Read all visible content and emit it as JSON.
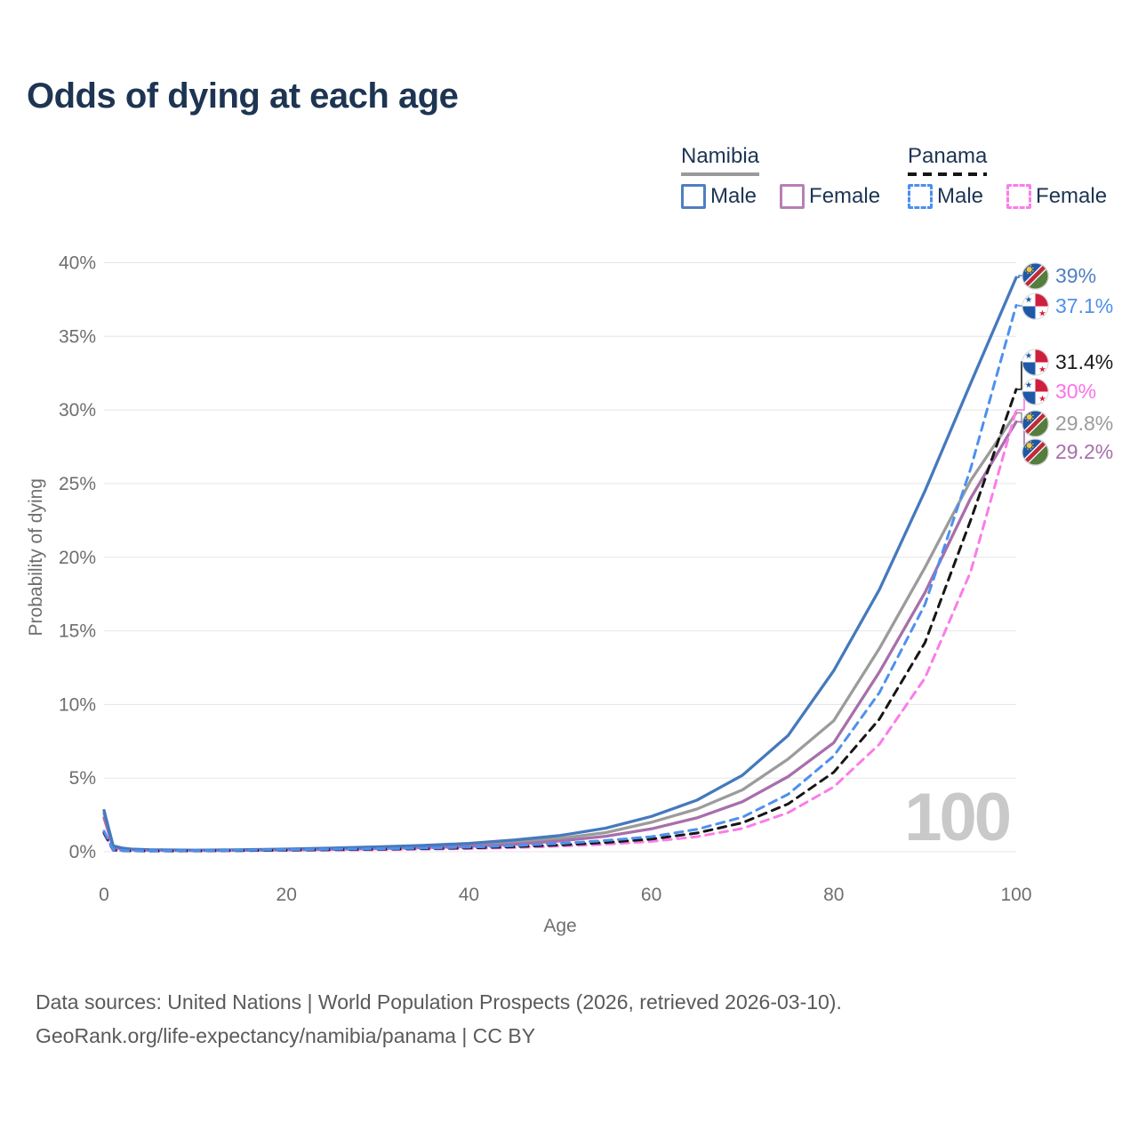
{
  "title": "Odds of dying at each age",
  "legend": {
    "groups": [
      {
        "id": "namibia",
        "label": "Namibia",
        "line_style": "solid",
        "line_color": "#9a9a9a",
        "items": [
          {
            "label": "Male",
            "color": "#4f7fc1",
            "dashed": false
          },
          {
            "label": "Female",
            "color": "#b77fb5",
            "dashed": false
          }
        ]
      },
      {
        "id": "panama",
        "label": "Panama",
        "line_style": "dashed",
        "line_color": "#151515",
        "items": [
          {
            "label": "Male",
            "color": "#4d8ef0",
            "dashed": true
          },
          {
            "label": "Female",
            "color": "#fc7de9",
            "dashed": true
          }
        ]
      }
    ]
  },
  "chart_data": {
    "type": "line",
    "title": "Odds of dying at each age",
    "xlabel": "Age",
    "ylabel": "Probability of dying",
    "xlim": [
      0,
      100
    ],
    "ylim": [
      0,
      40
    ],
    "grid": "horizontal",
    "legend_position": "top-right",
    "age_indicator": "100",
    "x_ticks": [
      0,
      20,
      40,
      60,
      80,
      100
    ],
    "y_ticks": [
      {
        "value": 0,
        "label": "0%"
      },
      {
        "value": 5,
        "label": "5%"
      },
      {
        "value": 10,
        "label": "10%"
      },
      {
        "value": 15,
        "label": "15%"
      },
      {
        "value": 20,
        "label": "20%"
      },
      {
        "value": 25,
        "label": "25%"
      },
      {
        "value": 30,
        "label": "30%"
      },
      {
        "value": 35,
        "label": "35%"
      },
      {
        "value": 40,
        "label": "40%"
      }
    ],
    "x": [
      0,
      1,
      2,
      3,
      5,
      10,
      15,
      20,
      25,
      30,
      35,
      40,
      45,
      50,
      55,
      60,
      65,
      70,
      75,
      80,
      85,
      90,
      95,
      100
    ],
    "series": [
      {
        "id": "namibia-male",
        "name": "Namibia Male",
        "country": "Namibia",
        "sex": "male",
        "color": "#4579bd",
        "dashed": false,
        "flag": "namibia",
        "end_value": 39.0,
        "end_label": "39%",
        "label_color": "#4f7fc1",
        "values": [
          2.8,
          0.4,
          0.25,
          0.18,
          0.13,
          0.1,
          0.13,
          0.18,
          0.25,
          0.33,
          0.43,
          0.57,
          0.8,
          1.1,
          1.6,
          2.4,
          3.5,
          5.2,
          7.9,
          12.3,
          17.8,
          24.5,
          31.8,
          39.0
        ]
      },
      {
        "id": "namibia-both",
        "name": "Namibia",
        "country": "Namibia",
        "sex": "both",
        "color": "#9b9b9b",
        "dashed": false,
        "flag": "namibia",
        "end_value": 29.8,
        "end_label": "29.8%",
        "label_color": "#9b9b9b",
        "values": [
          2.6,
          0.35,
          0.22,
          0.16,
          0.11,
          0.09,
          0.11,
          0.15,
          0.2,
          0.27,
          0.35,
          0.46,
          0.63,
          0.9,
          1.3,
          2.0,
          2.9,
          4.2,
          6.3,
          8.9,
          13.8,
          19.3,
          25.2,
          29.8
        ]
      },
      {
        "id": "namibia-female",
        "name": "Namibia Female",
        "country": "Namibia",
        "sex": "female",
        "color": "#a76fab",
        "dashed": false,
        "flag": "namibia",
        "end_value": 29.2,
        "end_label": "29.2%",
        "label_color": "#a76fab",
        "values": [
          2.3,
          0.3,
          0.19,
          0.14,
          0.1,
          0.08,
          0.09,
          0.12,
          0.16,
          0.21,
          0.28,
          0.37,
          0.51,
          0.73,
          1.05,
          1.55,
          2.3,
          3.4,
          5.1,
          7.4,
          12.2,
          17.6,
          24.0,
          29.2
        ]
      },
      {
        "id": "panama-male",
        "name": "Panama Male",
        "country": "Panama",
        "sex": "male",
        "color": "#4e90ee",
        "dashed": true,
        "flag": "panama",
        "end_value": 37.1,
        "end_label": "37.1%",
        "label_color": "#4e90ee",
        "values": [
          1.4,
          0.12,
          0.09,
          0.07,
          0.06,
          0.07,
          0.1,
          0.14,
          0.17,
          0.2,
          0.25,
          0.31,
          0.41,
          0.56,
          0.76,
          1.02,
          1.52,
          2.35,
          3.9,
          6.5,
          10.8,
          16.8,
          26.0,
          37.1
        ]
      },
      {
        "id": "panama-both",
        "name": "Panama",
        "country": "Panama",
        "sex": "both",
        "color": "#161616",
        "dashed": true,
        "flag": "panama",
        "end_value": 31.4,
        "end_label": "31.4%",
        "label_color": "#1a1a1a",
        "values": [
          1.3,
          0.11,
          0.08,
          0.06,
          0.05,
          0.06,
          0.08,
          0.11,
          0.14,
          0.17,
          0.21,
          0.26,
          0.34,
          0.46,
          0.63,
          0.86,
          1.27,
          1.97,
          3.25,
          5.4,
          9.0,
          14.2,
          22.5,
          31.4
        ]
      },
      {
        "id": "panama-female",
        "name": "Panama Female",
        "country": "Panama",
        "sex": "female",
        "color": "#fb7ce8",
        "dashed": true,
        "flag": "panama",
        "end_value": 30.0,
        "end_label": "30%",
        "label_color": "#fb72e8",
        "values": [
          1.2,
          0.1,
          0.07,
          0.06,
          0.05,
          0.05,
          0.07,
          0.09,
          0.11,
          0.13,
          0.17,
          0.21,
          0.28,
          0.38,
          0.51,
          0.7,
          1.02,
          1.58,
          2.65,
          4.4,
          7.3,
          11.8,
          19.0,
          30.0
        ]
      }
    ]
  },
  "flag_colors": {
    "namibia": {
      "blue": "#2057a7",
      "red": "#bf2c34",
      "green": "#567d3e",
      "gold": "#f9c72f",
      "white": "#ffffff"
    },
    "panama": {
      "red": "#cf1f3f",
      "blue": "#2058a8",
      "white": "#ffffff"
    }
  },
  "footer": {
    "line1": "Data sources: United Nations | World Population Prospects (2026, retrieved 2026-03-10).",
    "line2": "GeoRank.org/life-expectancy/namibia/panama | CC BY"
  }
}
